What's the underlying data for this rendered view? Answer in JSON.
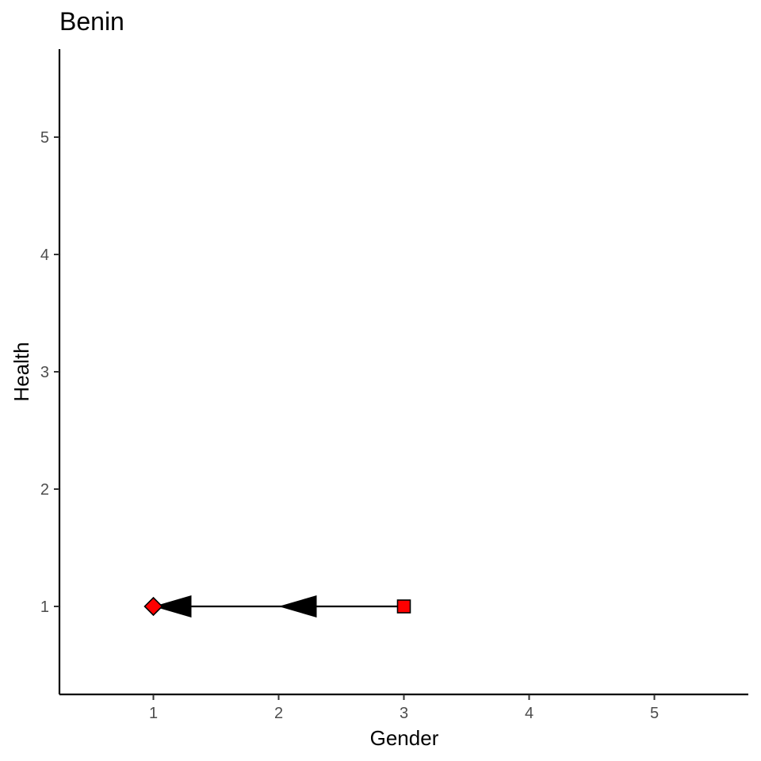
{
  "chart_data": {
    "type": "scatter",
    "title": "Benin",
    "xlabel": "Gender",
    "ylabel": "Health",
    "xlim": [
      0.25,
      5.75
    ],
    "ylim": [
      0.25,
      5.75
    ],
    "xticks": [
      1,
      2,
      3,
      4,
      5
    ],
    "yticks": [
      1,
      2,
      3,
      4,
      5
    ],
    "grid": false,
    "legend": "none",
    "points": [
      {
        "x": 3,
        "y": 1,
        "shape": "square",
        "color": "#ff0000"
      },
      {
        "x": 1,
        "y": 1,
        "shape": "diamond",
        "color": "#ff0000"
      }
    ],
    "arrows": [
      {
        "x_from": 3,
        "y_from": 1,
        "x_to": 2,
        "y_to": 1
      },
      {
        "x_from": 2,
        "y_from": 1,
        "x_to": 1,
        "y_to": 1
      }
    ]
  },
  "colors": {
    "background": "#ffffff",
    "axis": "#000000",
    "tick_label": "#4d4d4d",
    "marker_fill": "#ff0000",
    "arrow": "#000000"
  }
}
